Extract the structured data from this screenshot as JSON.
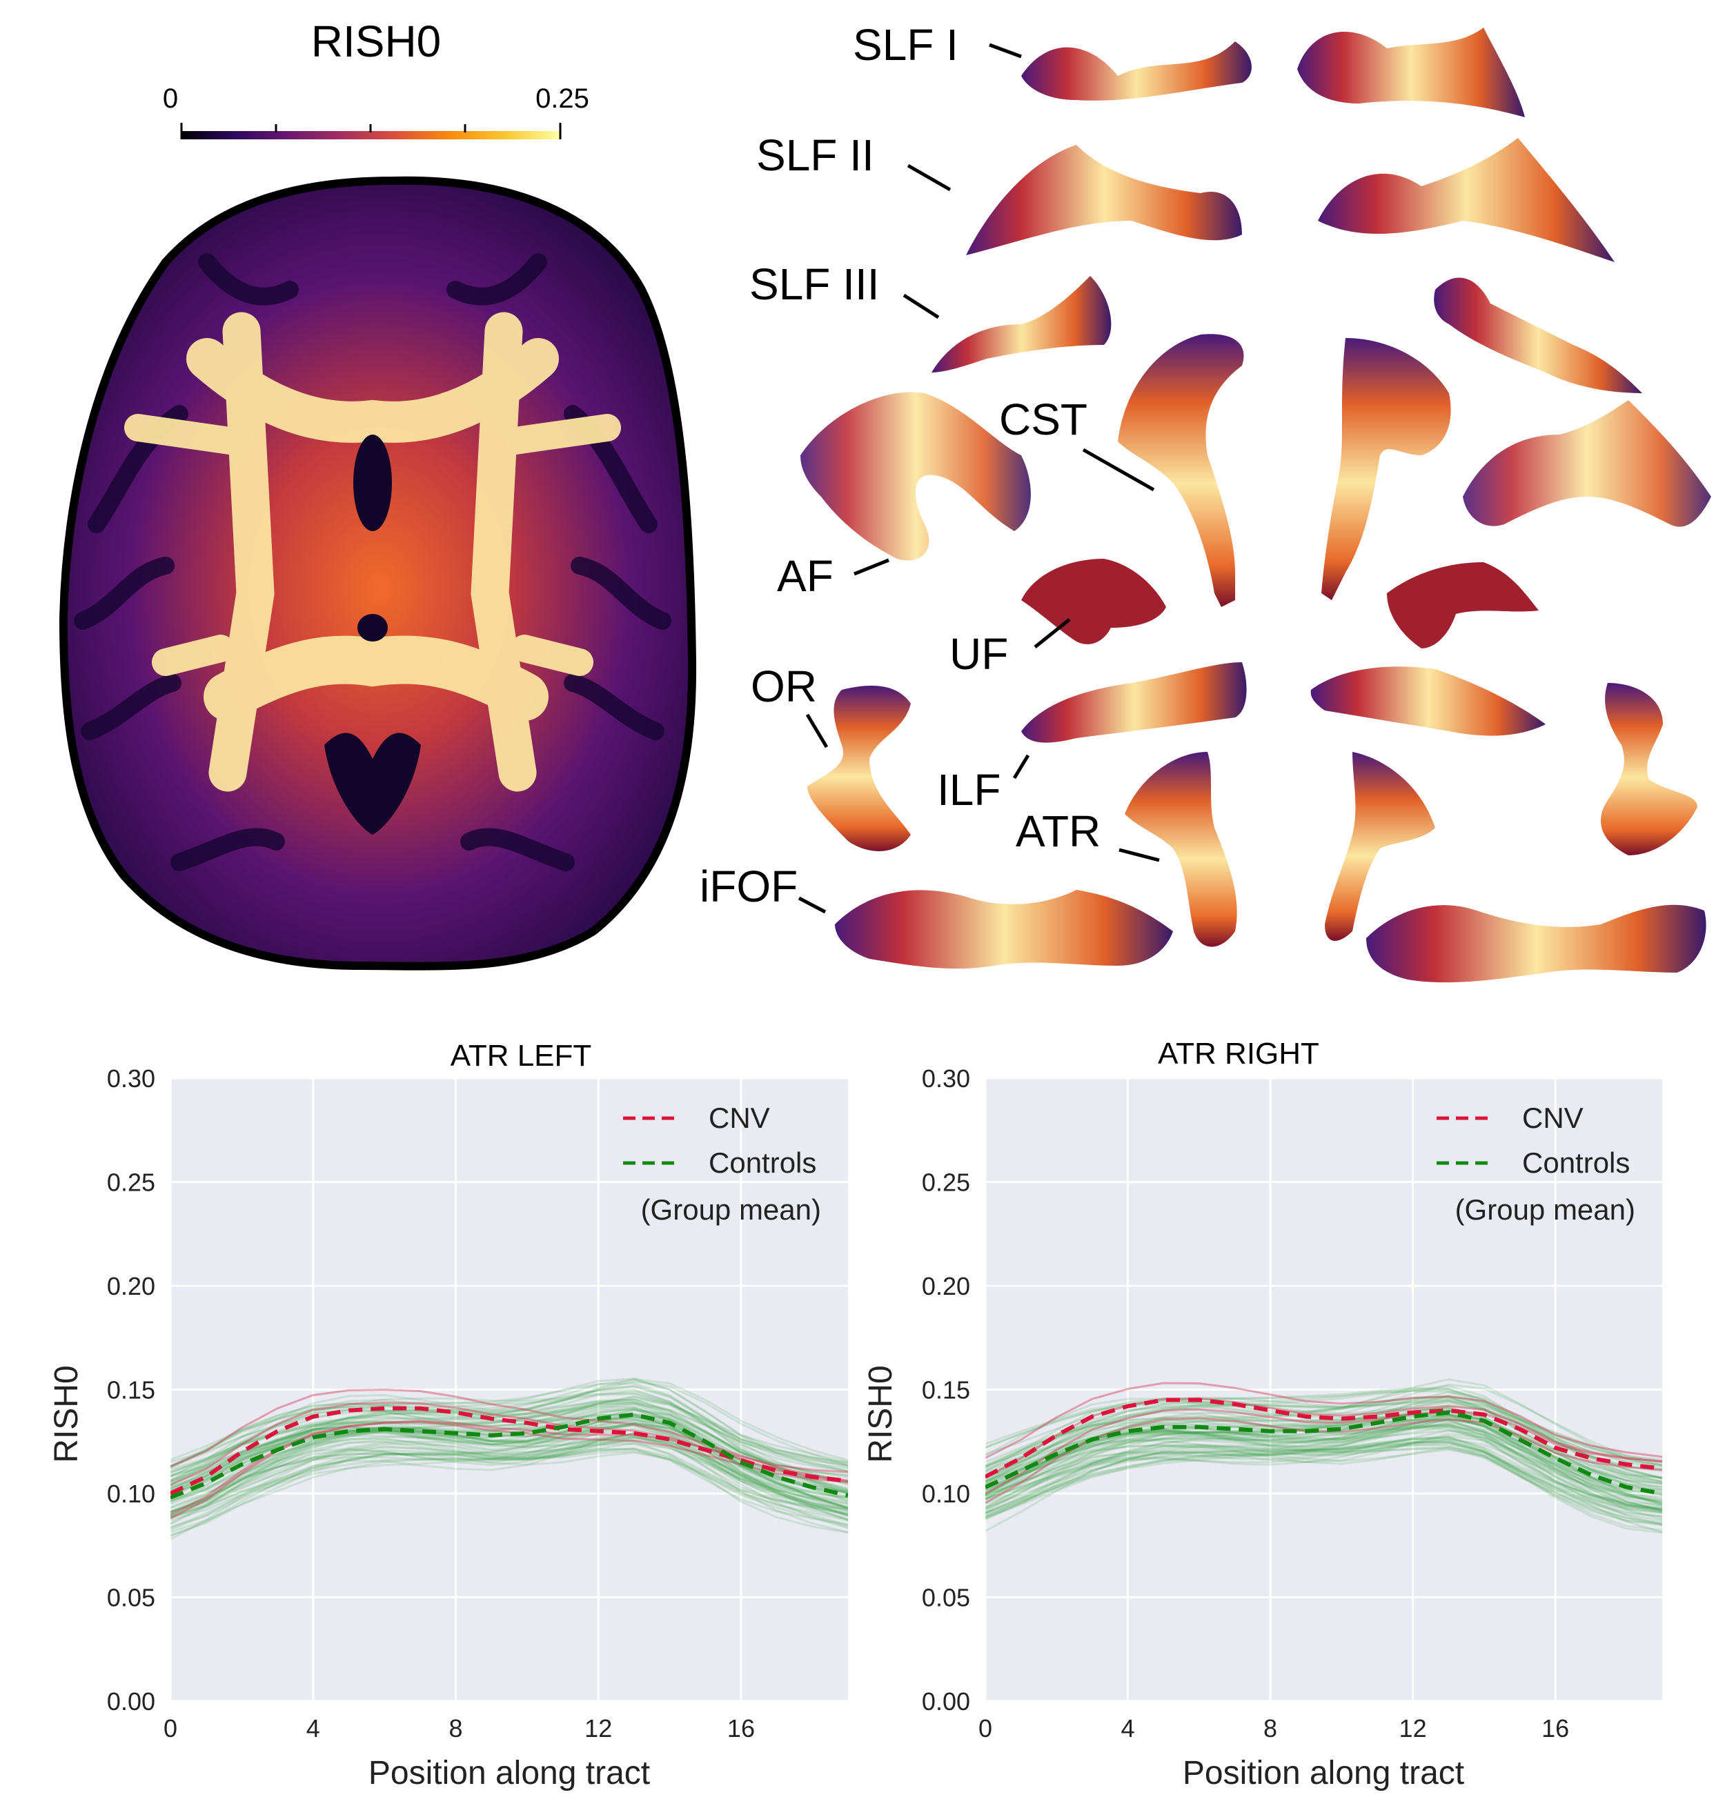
{
  "colorbar": {
    "title": "RISH0",
    "min_label": "0",
    "max_label": "0.25",
    "colormap": [
      "#000004",
      "#2c0a5e",
      "#6a176e",
      "#a52c60",
      "#dd513a",
      "#f98c0a",
      "#f9c932",
      "#fcffa4"
    ]
  },
  "tract_labels": [
    "SLF I",
    "SLF II",
    "SLF III",
    "CST",
    "AF",
    "UF",
    "OR",
    "ILF",
    "ATR",
    "iFOF"
  ],
  "legend": {
    "cnv": "CNV",
    "controls": "Controls",
    "note": "(Group mean)"
  },
  "colors": {
    "cnv": "#dc143c",
    "controls": "#118811",
    "plot_bg": "#eaeaf2"
  },
  "chart_data": [
    {
      "type": "line",
      "title": "ATR LEFT",
      "xlabel": "Position along tract",
      "ylabel": "RISH0",
      "xlim": [
        0,
        19
      ],
      "ylim": [
        0,
        0.3
      ],
      "xticks": [
        0,
        4,
        8,
        12,
        16
      ],
      "yticks": [
        0.0,
        0.05,
        0.1,
        0.15,
        0.2,
        0.25,
        0.3
      ],
      "grid": true,
      "legend_position": "top-right",
      "x": [
        0,
        1,
        2,
        3,
        4,
        5,
        6,
        7,
        8,
        9,
        10,
        11,
        12,
        13,
        14,
        15,
        16,
        17,
        18,
        19
      ],
      "series": [
        {
          "name": "CNV",
          "style": "dashed",
          "values": [
            0.1,
            0.108,
            0.12,
            0.13,
            0.137,
            0.14,
            0.141,
            0.141,
            0.139,
            0.136,
            0.134,
            0.131,
            0.13,
            0.129,
            0.126,
            0.121,
            0.116,
            0.111,
            0.108,
            0.106
          ]
        },
        {
          "name": "Controls",
          "style": "dashed",
          "values": [
            0.098,
            0.105,
            0.114,
            0.121,
            0.127,
            0.13,
            0.131,
            0.13,
            0.129,
            0.128,
            0.129,
            0.132,
            0.136,
            0.138,
            0.134,
            0.125,
            0.115,
            0.108,
            0.103,
            0.099
          ]
        }
      ]
    },
    {
      "type": "line",
      "title": "ATR RIGHT",
      "xlabel": "Position along tract",
      "ylabel": "RISH0",
      "xlim": [
        0,
        19
      ],
      "ylim": [
        0,
        0.3
      ],
      "xticks": [
        0,
        4,
        8,
        12,
        16
      ],
      "yticks": [
        0.0,
        0.05,
        0.1,
        0.15,
        0.2,
        0.25,
        0.3
      ],
      "grid": true,
      "legend_position": "top-right",
      "x": [
        0,
        1,
        2,
        3,
        4,
        5,
        6,
        7,
        8,
        9,
        10,
        11,
        12,
        13,
        14,
        15,
        16,
        17,
        18,
        19
      ],
      "series": [
        {
          "name": "CNV",
          "style": "dashed",
          "values": [
            0.108,
            0.117,
            0.128,
            0.137,
            0.142,
            0.145,
            0.145,
            0.143,
            0.14,
            0.137,
            0.136,
            0.137,
            0.139,
            0.14,
            0.138,
            0.131,
            0.122,
            0.117,
            0.114,
            0.112
          ]
        },
        {
          "name": "Controls",
          "style": "dashed",
          "values": [
            0.103,
            0.111,
            0.119,
            0.126,
            0.13,
            0.132,
            0.132,
            0.131,
            0.13,
            0.13,
            0.131,
            0.134,
            0.137,
            0.139,
            0.135,
            0.126,
            0.117,
            0.109,
            0.103,
            0.1
          ]
        }
      ]
    }
  ]
}
